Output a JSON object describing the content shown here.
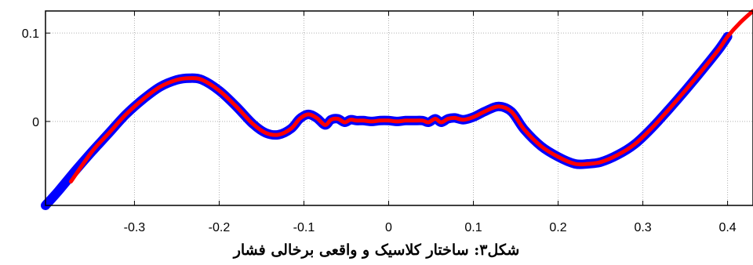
{
  "caption": "شکل۳: ساختار کلاسیک و واقعی برخالی فشار",
  "chart_data": {
    "type": "line",
    "xlim": [
      -0.405,
      0.43
    ],
    "ylim": [
      -0.095,
      0.125
    ],
    "xticks": [
      -0.3,
      -0.2,
      -0.1,
      0,
      0.1,
      0.2,
      0.3,
      0.4
    ],
    "xtick_labels": [
      "-0.3",
      "-0.2",
      "-0.1",
      "0",
      "0.1",
      "0.2",
      "0.3",
      "0.4"
    ],
    "yticks": [
      0,
      0.1
    ],
    "ytick_labels": [
      "0",
      "0.1"
    ],
    "grid": true,
    "colors": {
      "series_1": "#0000ff",
      "series_2": "#ff0000"
    },
    "series": [
      {
        "color": "#0000ff",
        "x": [
          -0.405,
          -0.39,
          -0.37,
          -0.35,
          -0.33,
          -0.31,
          -0.29,
          -0.27,
          -0.25,
          -0.235,
          -0.22,
          -0.2,
          -0.18,
          -0.16,
          -0.145,
          -0.13,
          -0.115,
          -0.105,
          -0.095,
          -0.085,
          -0.075,
          -0.068,
          -0.06,
          -0.052,
          -0.045,
          -0.038,
          -0.03,
          -0.02,
          -0.01,
          0,
          0.01,
          0.02,
          0.03,
          0.04,
          0.047,
          0.055,
          0.062,
          0.07,
          0.078,
          0.088,
          0.1,
          0.115,
          0.13,
          0.145,
          0.16,
          0.18,
          0.2,
          0.22,
          0.235,
          0.25,
          0.27,
          0.29,
          0.31,
          0.33,
          0.35,
          0.37,
          0.39,
          0.4
        ],
        "y": [
          -0.095,
          -0.079,
          -0.056,
          -0.034,
          -0.013,
          0.008,
          0.025,
          0.039,
          0.047,
          0.049,
          0.047,
          0.035,
          0.017,
          -0.003,
          -0.013,
          -0.015,
          -0.008,
          0.003,
          0.008,
          0.004,
          -0.004,
          0.002,
          0.003,
          -0.001,
          0.002,
          0.001,
          0.001,
          0,
          0.001,
          0.001,
          0,
          0.001,
          0.001,
          0.001,
          -0.001,
          0.003,
          -0.001,
          0.003,
          0.004,
          0.002,
          0.005,
          0.012,
          0.017,
          0.011,
          -0.009,
          -0.028,
          -0.04,
          -0.048,
          -0.048,
          -0.046,
          -0.038,
          -0.026,
          -0.008,
          0.013,
          0.035,
          0.058,
          0.082,
          0.096
        ]
      },
      {
        "color": "#ff0000",
        "x": [
          -0.375,
          -0.35,
          -0.33,
          -0.31,
          -0.29,
          -0.27,
          -0.25,
          -0.235,
          -0.22,
          -0.2,
          -0.18,
          -0.16,
          -0.145,
          -0.13,
          -0.115,
          -0.105,
          -0.095,
          -0.085,
          -0.075,
          -0.068,
          -0.06,
          -0.052,
          -0.045,
          -0.038,
          -0.03,
          -0.02,
          -0.01,
          0,
          0.01,
          0.02,
          0.03,
          0.04,
          0.047,
          0.055,
          0.062,
          0.07,
          0.078,
          0.088,
          0.1,
          0.115,
          0.13,
          0.145,
          0.16,
          0.18,
          0.2,
          0.22,
          0.235,
          0.25,
          0.27,
          0.29,
          0.31,
          0.33,
          0.35,
          0.37,
          0.39,
          0.4,
          0.415,
          0.43
        ],
        "y": [
          -0.068,
          -0.034,
          -0.013,
          0.008,
          0.025,
          0.039,
          0.047,
          0.049,
          0.047,
          0.035,
          0.017,
          -0.003,
          -0.013,
          -0.015,
          -0.008,
          0.003,
          0.008,
          0.004,
          -0.004,
          0.002,
          0.003,
          -0.001,
          0.002,
          0.001,
          0.001,
          0,
          0.001,
          0.001,
          0,
          0.001,
          0.001,
          0.001,
          -0.001,
          0.003,
          -0.001,
          0.003,
          0.004,
          0.002,
          0.005,
          0.012,
          0.017,
          0.011,
          -0.009,
          -0.028,
          -0.04,
          -0.048,
          -0.048,
          -0.046,
          -0.038,
          -0.026,
          -0.008,
          0.013,
          0.035,
          0.058,
          0.082,
          0.096,
          0.112,
          0.125
        ]
      }
    ]
  }
}
